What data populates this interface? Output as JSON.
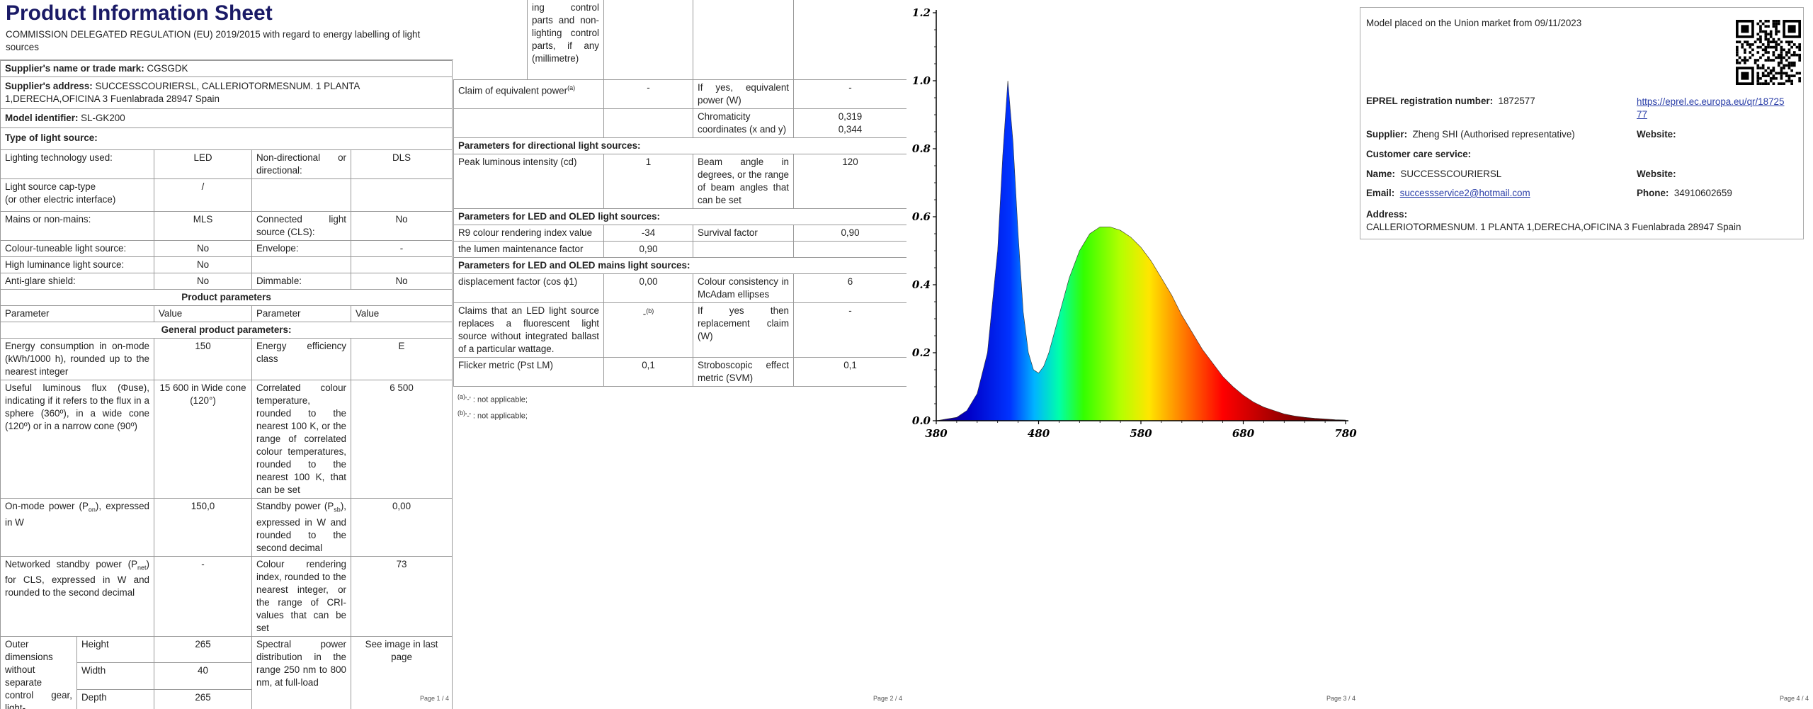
{
  "page1": {
    "title": "Product Information Sheet",
    "regulation": "COMMISSION DELEGATED REGULATION (EU) 2019/2015 with regard to energy labelling of light sources",
    "supplier_name_label": "Supplier's name or trade mark:",
    "supplier_name": "CGSGDK",
    "supplier_address_label": "Supplier's address:",
    "supplier_address": "SUCCESSCOURIERSL, CALLERIOTORMESNUM. 1 PLANTA 1,DERECHA,OFICINA 3 Fuenlabrada 28947 Spain",
    "model_label": "Model identifier:",
    "model": "SL-GK200",
    "type_heading": "Type of light source:",
    "rows": {
      "tech_label": "Lighting technology used:",
      "tech_value": "LED",
      "nondir_label": "Non-directional or directional:",
      "nondir_value": "DLS",
      "cap_label": "Light source cap-type",
      "cap_label2": "(or other electric interface)",
      "cap_value": "/",
      "mains_label": "Mains or non-mains:",
      "mains_value": "MLS",
      "cls_label": "Connected light source (CLS):",
      "cls_value": "No",
      "colour_label": "Colour-tuneable light source:",
      "colour_value": "No",
      "env_label": "Envelope:",
      "env_value": "-",
      "highlum_label": "High luminance light source:",
      "highlum_value": "No",
      "glare_label": "Anti-glare shield:",
      "glare_value": "No",
      "dim_label": "Dimmable:",
      "dim_value": "No"
    },
    "product_params_heading": "Product parameters",
    "col_parameter": "Parameter",
    "col_value": "Value",
    "general_heading": "General product parameters:",
    "energy_label": "Energy consumption in on-mode (kWh/1000 h), rounded up to the nearest integer",
    "energy_value": "150",
    "eff_label": "Energy efficiency class",
    "eff_value": "E",
    "flux_label": "Useful luminous flux (Φuse), indicating if it refers to the flux in a sphere (360º), in a wide cone (120º) or in a narrow cone (90º)",
    "flux_value": "15 600 in Wide cone (120°)",
    "cct_label": "Correlated colour temperature, rounded to the nearest 100 K, or the range of correlated colour temperatures, rounded to the nearest 100 K, that can be set",
    "cct_value": "6 500",
    "onmode_label_a": "On-mode power (P",
    "onmode_sub": "on",
    "onmode_label_b": "), expressed in W",
    "onmode_value": "150,0",
    "standby_label_a": "Standby power (P",
    "standby_sub": "sb",
    "standby_label_b": "), expressed in W and rounded to the second decimal",
    "standby_value": "0,00",
    "net_label_a": "Networked standby power (P",
    "net_sub": "net",
    "net_label_b": ") for CLS, expressed in W and rounded to the second decimal",
    "net_value": "-",
    "cri_label": "Colour rendering index, rounded to the nearest integer, or the range of CRI-values that can be set",
    "cri_value": "73",
    "outer_label": "Outer dimensions without separate control gear, light-",
    "height_label": "Height",
    "height_value": "265",
    "width_label": "Width",
    "width_value": "40",
    "depth_label": "Depth",
    "depth_value": "265",
    "spd_label": "Spectral power distribution in the range 250 nm to 800 nm, at full-load",
    "spd_value": "See image in last page",
    "page_number": "Page 1 / 4"
  },
  "page2": {
    "top_cont": "ing control parts and non-lighting control parts, if any (millimetre)",
    "equiv_label": "Claim of equivalent power",
    "equiv_sup": "(a)",
    "equiv_value": "-",
    "ifyes_label": "If yes, equivalent power (W)",
    "ifyes_value": "-",
    "chroma_label": "Chromaticity coordinates (x and y)",
    "chroma_x": "0,319",
    "chroma_y": "0,344",
    "dir_heading": "Parameters for directional light sources:",
    "peak_label": "Peak luminous intensity (cd)",
    "peak_value": "1",
    "beam_label": "Beam angle in degrees, or the range of beam angles that can be set",
    "beam_value": "120",
    "led_heading": "Parameters for LED and OLED light sources:",
    "r9_label": "R9 colour rendering index value",
    "r9_value": "-34",
    "survival_label": "Survival factor",
    "survival_value": "0,90",
    "lumen_label": "the lumen maintenance factor",
    "lumen_value": "0,90",
    "mains_heading": "Parameters for LED and OLED mains light sources:",
    "disp_label": "displacement factor (cos ϕ1)",
    "disp_value": "0,00",
    "mcadam_label": "Colour consistency in McAdam ellipses",
    "mcadam_value": "6",
    "claims_label": "Claims that an LED light source replaces a fluorescent light source without integrated ballast of a particular wattage.",
    "claims_value": "-",
    "claims_sup": "(b)",
    "replace_label": "If yes then replacement claim (W)",
    "replace_value": "-",
    "flicker_label": "Flicker metric (Pst LM)",
    "flicker_value": "0,1",
    "strobo_label": "Stroboscopic effect metric (SVM)",
    "strobo_value": "0,1",
    "note_a_mark": "(a)",
    "note_a": "'-' : not applicable;",
    "note_b_mark": "(b)",
    "note_b": "'-' : not applicable;",
    "page_number": "Page 2 / 4"
  },
  "page3": {
    "page_number": "Page 3 / 4"
  },
  "chart_data": {
    "type": "area",
    "title": "",
    "xlabel": "",
    "ylabel": "",
    "xlim": [
      380,
      780
    ],
    "ylim": [
      0.0,
      1.2
    ],
    "x_ticks": [
      "380",
      "480",
      "580",
      "680",
      "780"
    ],
    "y_ticks": [
      "0.0",
      "0.2",
      "0.4",
      "0.6",
      "0.8",
      "1.0",
      "1.2"
    ],
    "grid": false,
    "fill": "visible-spectrum gradient",
    "x": [
      380,
      390,
      400,
      410,
      420,
      430,
      440,
      445,
      450,
      455,
      460,
      465,
      470,
      475,
      480,
      485,
      490,
      500,
      510,
      520,
      530,
      540,
      550,
      560,
      570,
      580,
      590,
      600,
      610,
      620,
      630,
      640,
      650,
      660,
      670,
      680,
      690,
      700,
      710,
      720,
      730,
      740,
      750,
      760,
      770,
      780
    ],
    "values": [
      0.0,
      0.005,
      0.01,
      0.03,
      0.08,
      0.2,
      0.5,
      0.78,
      1.0,
      0.82,
      0.55,
      0.32,
      0.2,
      0.15,
      0.14,
      0.16,
      0.2,
      0.31,
      0.42,
      0.5,
      0.55,
      0.57,
      0.57,
      0.56,
      0.54,
      0.51,
      0.47,
      0.42,
      0.37,
      0.31,
      0.26,
      0.21,
      0.17,
      0.13,
      0.1,
      0.075,
      0.055,
      0.04,
      0.03,
      0.02,
      0.014,
      0.01,
      0.007,
      0.005,
      0.003,
      0.002
    ]
  },
  "page4": {
    "market_text": "Model placed on the Union market from 09/11/2023",
    "eprel_label": "EPREL registration number:",
    "eprel_value": "1872577",
    "eprel_link": "https://eprel.ec.europa.eu/qr/1872577",
    "supplier_label": "Supplier:",
    "supplier_value": "Zheng SHI (Authorised representative)",
    "website_label": "Website:",
    "care_heading": "Customer care service:",
    "name_label": "Name:",
    "name_value": "SUCCESSCOURIERSL",
    "website2_label": "Website:",
    "email_label": "Email:",
    "email_value": "successservice2@hotmail.com",
    "phone_label": "Phone:",
    "phone_value": "34910602659",
    "address_label": "Address:",
    "address_value": "CALLERIOTORMESNUM. 1 PLANTA 1,DERECHA,OFICINA 3 Fuenlabrada 28947 Spain",
    "qr_icon": "qr-code-icon",
    "page_number": "Page 4 / 4"
  }
}
